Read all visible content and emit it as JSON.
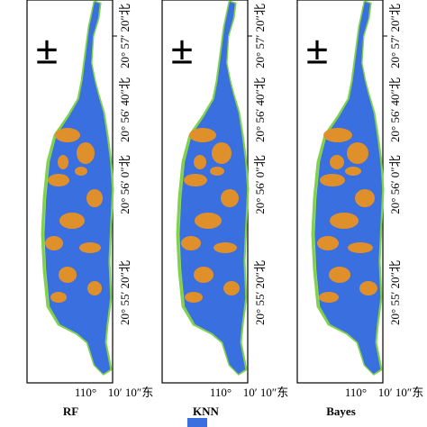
{
  "north_symbol": "±",
  "lat_labels": [
    "20° 57′ 20″北",
    "20° 56′ 40″北",
    "20° 56′ 0″北",
    "20° 55′ 20″北"
  ],
  "lon_labels": [
    "110°",
    "10′ 10″东"
  ],
  "panels": [
    {
      "name": "RF"
    },
    {
      "name": "KNN"
    },
    {
      "name": "Bayes"
    }
  ]
}
